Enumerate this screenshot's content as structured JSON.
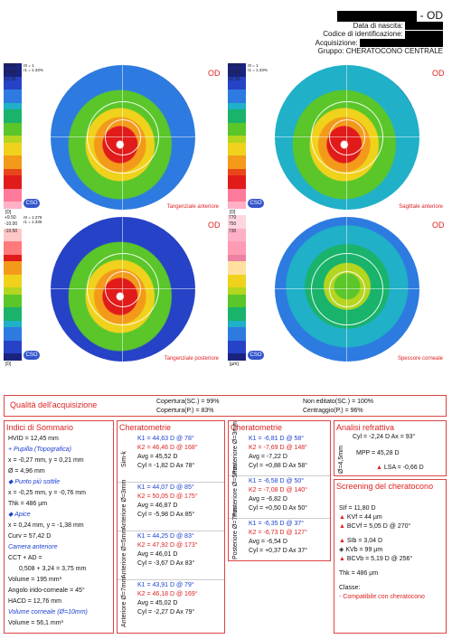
{
  "header": {
    "title_suffix": "- OD",
    "birth_label": "Data di nascita:",
    "id_label": "Codice di identificazione:",
    "acq_label": "Acquisizione:",
    "group": "Gruppo: CHERATOCONO CENTRALE"
  },
  "maps": [
    {
      "eye": "OD",
      "caption": "Tangenziale anteriore",
      "unit": "[D]",
      "scale_top": [
        "65.50",
        "64.00",
        "62.50"
      ],
      "info": "r0 = 1\nr1 = 1.33%"
    },
    {
      "eye": "OD",
      "caption": "Sagittale anteriore",
      "unit": "[D]",
      "scale_top": [
        "65.50",
        "64.00",
        "62.50"
      ],
      "info": "r0 = 1\nr1 = 1.33%"
    },
    {
      "eye": "OD",
      "caption": "Tangenziale posteriore",
      "unit": "[D]",
      "scale_top": [
        "+9.50",
        "-10.00",
        "-10.50"
      ],
      "info": "r0 = 1.276\nr1 = 1.336"
    },
    {
      "eye": "OD",
      "caption": "Spessore corneale",
      "unit": "[µm]",
      "scale_top": [
        "770",
        "750",
        "730"
      ],
      "info": ""
    }
  ],
  "acq": {
    "title": "Qualità dell'acquisizione",
    "cop_sc": "Copertura(SC.) = 99%",
    "cop_p": "Copertura(P.) = 83%",
    "non_ed": "Non editato(SC.) = 100%",
    "centr": "Centraggio(P.) = 96%"
  },
  "sommario": {
    "title": "Indici di Sommario",
    "lines": [
      "HVID = 12,45 mm",
      "+ Pupilla (Topografica)",
      "x = -0,27 mm, y = 0,21 mm",
      "Ø = 4,96 mm",
      "◆ Punto più sottile",
      "x = -0,25 mm, y = -0,76 mm",
      "Thk = 486 µm",
      "◆ Apice",
      "x = 0,24 mm, y = -1,38 mm",
      "Curv = 57,42 D",
      "Camera anteriore",
      "CCT + AD =",
      "0,508 + 3,24 = 3,75 mm",
      "Volume = 195 mm³",
      "Angolo irido-corneale = 45°",
      "HACD = 12,76 mm",
      "Volume corneale (Ø=10mm)",
      "Volume = 56,1 mm³"
    ]
  },
  "ant": {
    "title": "Cheratometrie",
    "groups": [
      {
        "label": "Sim-k",
        "k1": "K1 = 44,63 D  @ 78°",
        "k2": "K2 = 46,46 D  @ 168°",
        "avg": "Avg = 45,52 D",
        "cyl": "Cyl = -1,82 D Ax 78°"
      },
      {
        "label": "Anteriore Ø=3mm",
        "k1": "K1 = 44,07 D  @ 85°",
        "k2": "K2 = 50,05 D  @ 175°",
        "avg": "Avg = 46,87 D",
        "cyl": "Cyl = -5,98 D Ax 85°"
      },
      {
        "label": "Anteriore Ø=5mm",
        "k1": "K1 = 44,25 D  @ 83°",
        "k2": "K2 = 47,92 D  @ 173°",
        "avg": "Avg = 46,01 D",
        "cyl": "Cyl = -3,67 D Ax 83°"
      },
      {
        "label": "Anteriore Ø=7mm",
        "k1": "K1 = 43,91 D  @ 79°",
        "k2": "K2 = 46,18 D  @ 169°",
        "avg": "Avg = 45,02 D",
        "cyl": "Cyl = -2,27 D Ax 79°"
      }
    ]
  },
  "post": {
    "title": "Cheratometrie",
    "groups": [
      {
        "label": "Posteriore Ø=3mm",
        "k1": "K1 = -6,81 D  @ 58°",
        "k2": "K2 = -7,69 D  @ 148°",
        "avg": "Avg = -7,22 D",
        "cyl": "Cyl = +0,88 D Ax 58°"
      },
      {
        "label": "Posteriore Ø=5mm",
        "k1": "K1 = -6,58 D  @ 50°",
        "k2": "K2 = -7,08 D  @ 140°",
        "avg": "Avg = -6,82 D",
        "cyl": "Cyl = +0,50 D Ax 50°"
      },
      {
        "label": "Posteriore Ø=7mm",
        "k1": "K1 = -6,35 D  @ 37°",
        "k2": "K2 = -6,73 D  @ 127°",
        "avg": "Avg = -6,54 D",
        "cyl": "Cyl = +0,37 D Ax 37°"
      }
    ]
  },
  "refr": {
    "title": "Analisi refrattiva",
    "vlabel": "Ø=4,5mm",
    "cyl": "Cyl = -2,24 D Ax = 93°",
    "mpp": "MPP = 45,28 D",
    "lsa": "LSA = -0,66 D"
  },
  "screen": {
    "title": "Screening del cheratocono",
    "sif": "SIf = 11,80 D",
    "kvf": "KVf = 44 µm",
    "bcvf": "BCVf = 5,05 D @ 270°",
    "sib": "SIb = 3,04 D",
    "kvb": "KVb = 99 µm",
    "bcvb": "BCVb = 5,19 D @ 256°",
    "thk": "Thk = 486 µm",
    "classe": "Classe:",
    "classe_val": "- Compatibile con cheratocono"
  }
}
